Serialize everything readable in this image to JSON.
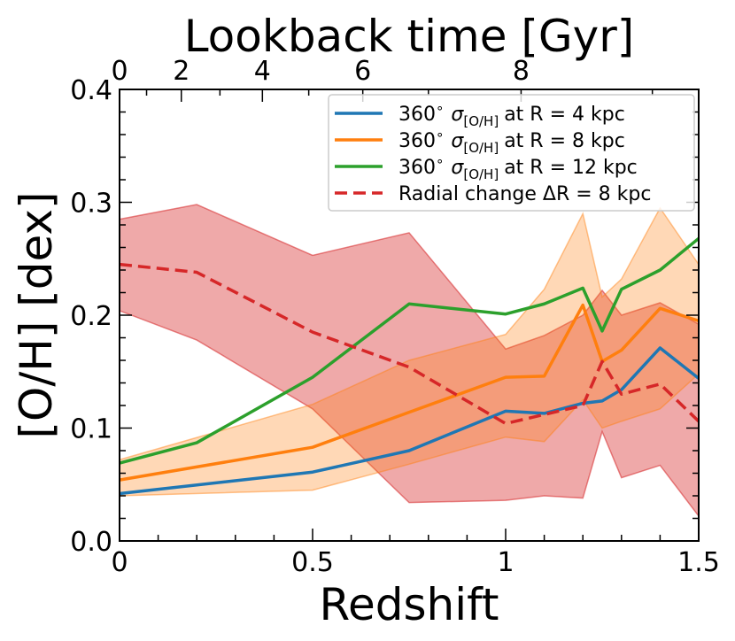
{
  "chart_data": {
    "type": "line",
    "xlabel": "Redshift",
    "ylabel": "[O/H] [dex]",
    "top_xlabel": "Lookback time [Gyr]",
    "xlim": [
      0,
      1.5
    ],
    "ylim": [
      0.0,
      0.4
    ],
    "x_ticks": [
      0,
      0.5,
      1,
      1.5
    ],
    "x_tick_labels": [
      "0",
      "0.5",
      "1",
      "1.5"
    ],
    "y_ticks": [
      0.0,
      0.1,
      0.2,
      0.3,
      0.4
    ],
    "y_tick_labels": [
      "0.0",
      "0.1",
      "0.2",
      "0.3",
      "0.4"
    ],
    "top_ticks": [
      {
        "z": 0.0,
        "label": "0"
      },
      {
        "z": 0.16,
        "label": "2"
      },
      {
        "z": 0.37,
        "label": "4"
      },
      {
        "z": 0.63,
        "label": "6"
      },
      {
        "z": 1.04,
        "label": "8"
      }
    ],
    "legend": [
      {
        "label": "360° σ[O/H] at R = 4 kpc",
        "prefix": "360",
        "suffix": "at R = 4 kpc"
      },
      {
        "label": "360° σ[O/H] at R = 8 kpc",
        "prefix": "360",
        "suffix": "at R = 8 kpc"
      },
      {
        "label": "360° σ[O/H] at R = 12 kpc",
        "prefix": "360",
        "suffix": "at R = 12 kpc"
      },
      {
        "label": "Radial change ΔR = 8 kpc",
        "prefix": "Radial change ΔR = 8 kpc",
        "suffix": ""
      }
    ],
    "legend_placement": "top-right",
    "series": [
      {
        "name": "360° σ[O/H] at R = 4 kpc",
        "color": "#1f77b4",
        "dashed": false,
        "x": [
          0,
          0.5,
          0.75,
          1.0,
          1.1,
          1.2,
          1.25,
          1.3,
          1.4,
          1.5
        ],
        "y": [
          0.042,
          0.061,
          0.08,
          0.115,
          0.113,
          0.122,
          0.124,
          0.134,
          0.171,
          0.144
        ]
      },
      {
        "name": "360° σ[O/H] at R = 8 kpc",
        "color": "#ff7f0e",
        "dashed": false,
        "x": [
          0,
          0.5,
          0.75,
          1.0,
          1.1,
          1.2,
          1.25,
          1.3,
          1.4,
          1.5
        ],
        "y": [
          0.054,
          0.083,
          0.114,
          0.145,
          0.146,
          0.209,
          0.159,
          0.169,
          0.206,
          0.195
        ]
      },
      {
        "name": "360° σ[O/H] at R = 12 kpc",
        "color": "#2ca02c",
        "dashed": false,
        "x": [
          0,
          0.2,
          0.5,
          0.75,
          1.0,
          1.1,
          1.2,
          1.25,
          1.3,
          1.4,
          1.5
        ],
        "y": [
          0.069,
          0.087,
          0.145,
          0.21,
          0.201,
          0.21,
          0.224,
          0.186,
          0.223,
          0.24,
          0.268
        ]
      },
      {
        "name": "Radial change ΔR = 8 kpc",
        "color": "#d62728",
        "dashed": true,
        "x": [
          0,
          0.2,
          0.5,
          0.75,
          1.0,
          1.1,
          1.2,
          1.25,
          1.3,
          1.4,
          1.5
        ],
        "y": [
          0.245,
          0.238,
          0.185,
          0.154,
          0.104,
          0.112,
          0.12,
          0.159,
          0.13,
          0.139,
          0.106
        ]
      }
    ],
    "bands": [
      {
        "name": "Radial change ΔR = 8 kpc range",
        "color": "#d62728",
        "opacity": 0.4,
        "x": [
          0,
          0.2,
          0.5,
          0.75,
          1.0,
          1.1,
          1.2,
          1.25,
          1.3,
          1.4,
          1.5
        ],
        "upper": [
          0.285,
          0.298,
          0.253,
          0.273,
          0.17,
          0.182,
          0.2,
          0.222,
          0.2,
          0.211,
          0.192
        ],
        "lower": [
          0.204,
          0.178,
          0.117,
          0.034,
          0.036,
          0.04,
          0.038,
          0.097,
          0.056,
          0.067,
          0.022
        ]
      },
      {
        "name": "360° σ[O/H] at R = 8 kpc range",
        "color": "#ff7f0e",
        "opacity": 0.3,
        "x": [
          0,
          0.5,
          0.75,
          1.0,
          1.1,
          1.2,
          1.25,
          1.3,
          1.4,
          1.5
        ],
        "upper": [
          0.072,
          0.121,
          0.16,
          0.183,
          0.223,
          0.29,
          0.216,
          0.232,
          0.295,
          0.245
        ],
        "lower": [
          0.04,
          0.045,
          0.068,
          0.092,
          0.088,
          0.125,
          0.1,
          0.106,
          0.117,
          0.148
        ]
      }
    ]
  }
}
